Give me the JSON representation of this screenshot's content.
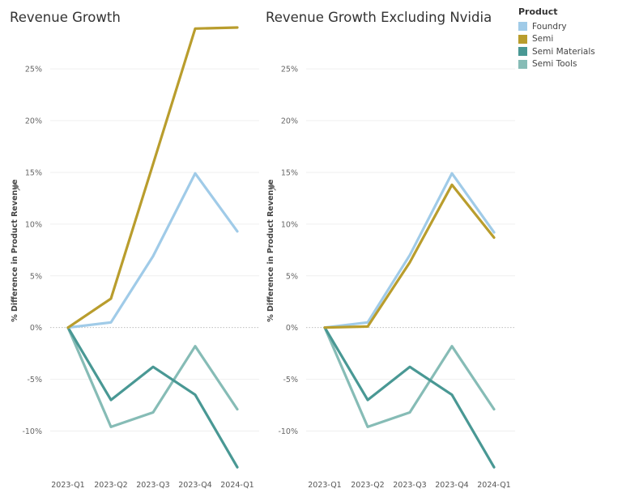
{
  "colors": {
    "Foundry": "#a0cbe8",
    "Semi": "#b99d2d",
    "Semi Materials": "#499894",
    "Semi Tools": "#86bcb6"
  },
  "legend": {
    "title": "Product",
    "items": [
      "Foundry",
      "Semi",
      "Semi Materials",
      "Semi Tools"
    ]
  },
  "pin_icon": "pin-icon",
  "chart_data": [
    {
      "type": "line",
      "title": "Revenue Growth",
      "ylabel": "% Difference in Product Revenue",
      "xlabel": "",
      "categories": [
        "2023-Q1",
        "2023-Q2",
        "2023-Q3",
        "2023-Q4",
        "2024-Q1"
      ],
      "yticks": [
        "25%",
        "20%",
        "15%",
        "10%",
        "5%",
        "0%",
        "-5%",
        "-10%"
      ],
      "ylim": [
        -14.5,
        29
      ],
      "grid": true,
      "series": [
        {
          "name": "Semi",
          "values": [
            0,
            2.8,
            15.8,
            28.9,
            29.0
          ]
        },
        {
          "name": "Foundry",
          "values": [
            0,
            0.5,
            6.9,
            14.9,
            9.3
          ]
        },
        {
          "name": "Semi Tools",
          "values": [
            0,
            -9.6,
            -8.2,
            -1.8,
            -7.9
          ]
        },
        {
          "name": "Semi Materials",
          "values": [
            0,
            -7.0,
            -3.8,
            -6.5,
            -13.5
          ]
        }
      ]
    },
    {
      "type": "line",
      "title": "Revenue Growth Excluding Nvidia",
      "ylabel": "% Difference in Product Revenue",
      "xlabel": "",
      "categories": [
        "2023-Q1",
        "2023-Q2",
        "2023-Q3",
        "2023-Q4",
        "2024-Q1"
      ],
      "yticks": [
        "25%",
        "20%",
        "15%",
        "10%",
        "5%",
        "0%",
        "-5%",
        "-10%"
      ],
      "ylim": [
        -14.5,
        29
      ],
      "grid": true,
      "series": [
        {
          "name": "Semi",
          "values": [
            0,
            0.1,
            6.3,
            13.8,
            8.7
          ]
        },
        {
          "name": "Foundry",
          "values": [
            0,
            0.5,
            7.0,
            14.9,
            9.2
          ]
        },
        {
          "name": "Semi Tools",
          "values": [
            0,
            -9.6,
            -8.2,
            -1.8,
            -7.9
          ]
        },
        {
          "name": "Semi Materials",
          "values": [
            0,
            -7.0,
            -3.8,
            -6.5,
            -13.5
          ]
        }
      ]
    }
  ]
}
